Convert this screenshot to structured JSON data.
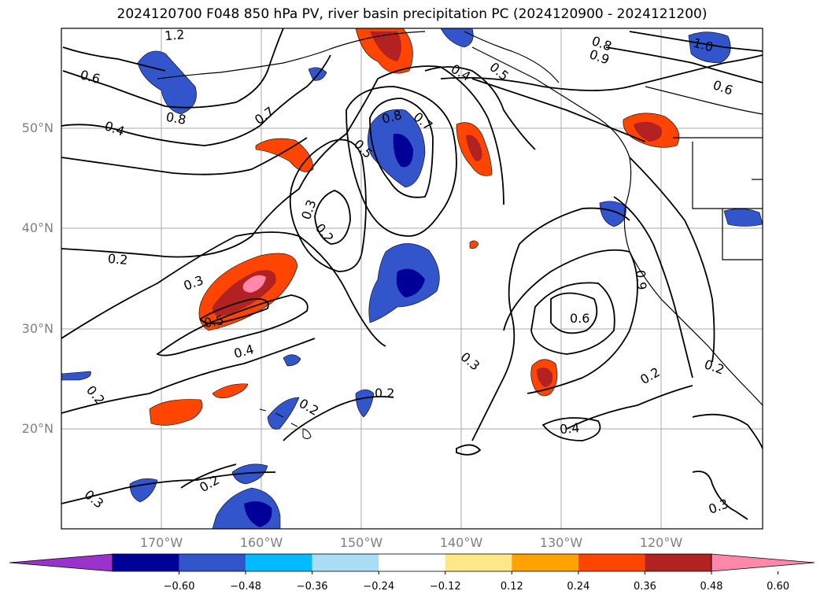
{
  "title": "2024120700 F048 850 hPa PV, river basin precipitation PC (2024120900 - 2024121200)",
  "lat_labels": [
    "50°N",
    "40°N",
    "30°N",
    "20°N"
  ],
  "lon_labels": [
    "170°W",
    "160°W",
    "150°W",
    "140°W",
    "130°W",
    "120°W"
  ],
  "contour_labels": [
    "1.2",
    "0.6",
    "0.8",
    "0.7",
    "0.4",
    "0.8",
    "0.7",
    "0.5",
    "0.4",
    "0.5",
    "0.8",
    "0.9",
    "1.0",
    "0.6",
    "0.3",
    "0.2",
    "0.2",
    "0.3",
    "0.5",
    "0.4",
    "0.2",
    "0.2",
    "0.3",
    "0.6",
    "0.9",
    "0.2",
    "0.2",
    "0.4",
    "0.2",
    "0.3",
    "0.3"
  ],
  "colorbar": {
    "ticks": [
      "−0.60",
      "−0.48",
      "−0.36",
      "−0.24",
      "−0.12",
      "0.12",
      "0.24",
      "0.36",
      "0.48",
      "0.60"
    ],
    "colors": [
      "#9933cc",
      "#000099",
      "#3355cc",
      "#00bbff",
      "#aaddf5",
      "#ffffff",
      "#ffe88a",
      "#ffa200",
      "#ff4500",
      "#b22222",
      "#ff88aa"
    ]
  },
  "colors": {
    "grid": "#aaaaaa",
    "contour": "#000000",
    "axis_label": "#808080"
  }
}
